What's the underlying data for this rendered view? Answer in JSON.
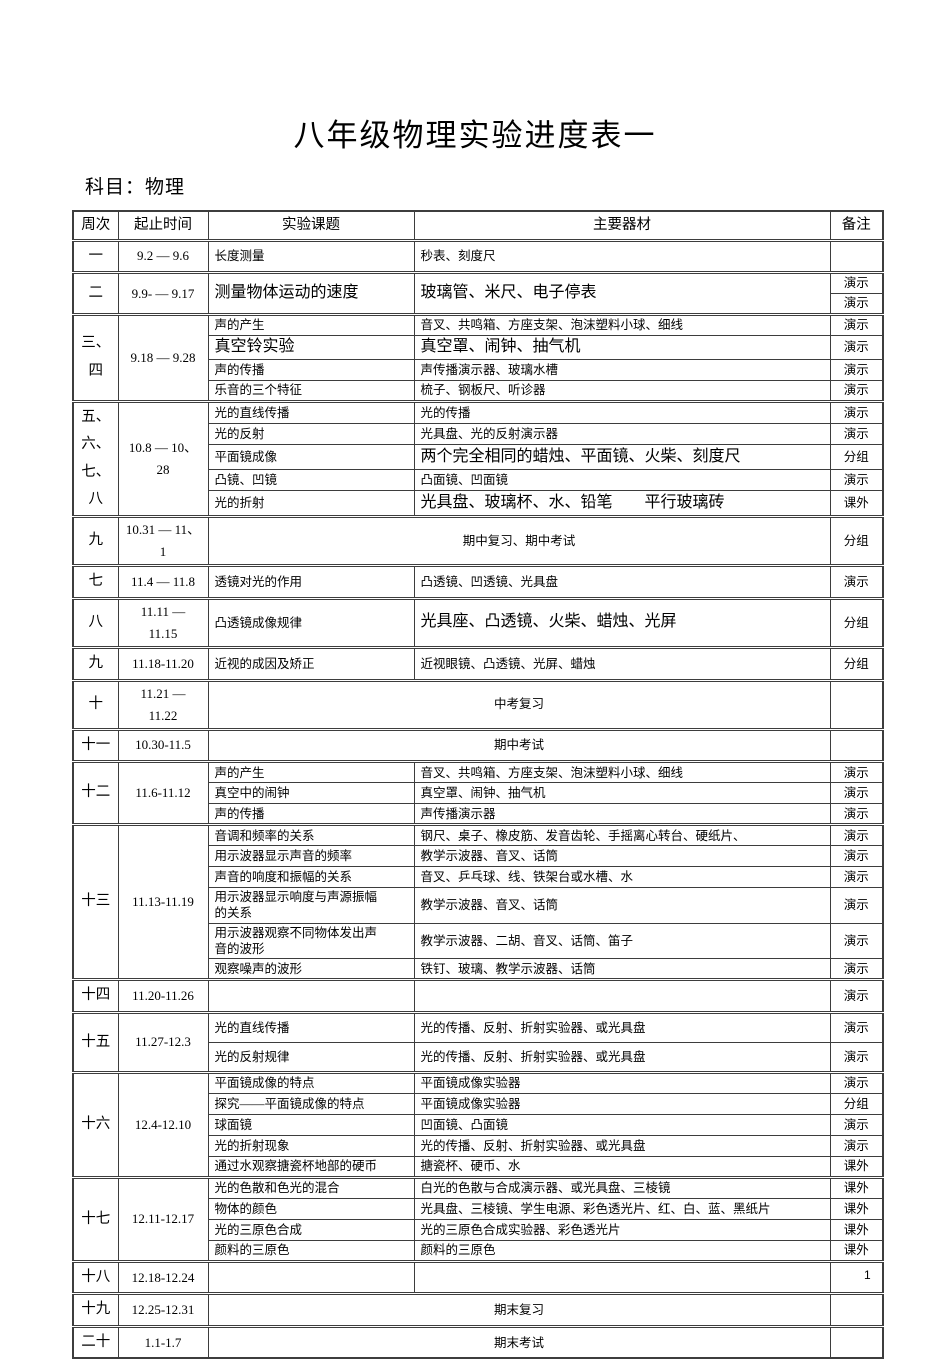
{
  "page": {
    "title": "八年级物理实验进度表一",
    "subject_label": "科目：物理",
    "page_number": "1"
  },
  "table": {
    "headers": [
      "周次",
      "起止时间",
      "实验课题",
      "主要器材",
      "备注"
    ],
    "groups": [
      {
        "week": [
          "一"
        ],
        "time": [
          "9.2 — 9.6"
        ],
        "rows": [
          {
            "topic": "长度测量",
            "equipment": "秒表、刻度尺",
            "note": ""
          }
        ]
      },
      {
        "week": [
          "二"
        ],
        "time": [
          "9.9- — 9.17"
        ],
        "merged": {
          "topic": "测量物体运动的速度",
          "equipment": "玻璃管、米尺、电子停表",
          "big": true
        },
        "rows": [
          {
            "note": "演示"
          },
          {
            "note": "演示"
          }
        ]
      },
      {
        "week": [
          "三、",
          "四"
        ],
        "time": [
          "9.18 — 9.28"
        ],
        "rows": [
          {
            "topic": "声的产生",
            "equipment": "音叉、共鸣箱、方座支架、泡沫塑料小球、细线",
            "note": "演示"
          },
          {
            "topic": "真空铃实验",
            "equipment": "真空罩、闹钟、抽气机",
            "note": "演示",
            "big": "row"
          },
          {
            "topic": "声的传播",
            "equipment": "声传播演示器、玻璃水槽",
            "note": "演示"
          },
          {
            "topic": "乐音的三个特征",
            "equipment": "梳子、钢板尺、听诊器",
            "note": "演示"
          }
        ]
      },
      {
        "week": [
          "五、",
          "六、",
          "七、",
          "八"
        ],
        "time": [
          "10.8 — 10、28"
        ],
        "rows": [
          {
            "topic": "光的直线传播",
            "equipment": "光的传播",
            "note": "演示"
          },
          {
            "topic": "光的反射",
            "equipment": "光具盘、光的反射演示器",
            "note": "演示"
          },
          {
            "topic": "平面镜成像",
            "equipment": "两个完全相同的蜡烛、平面镜、火柴、刻度尺",
            "note": "分组",
            "big": "equip"
          },
          {
            "topic": "凸镜、凹镜",
            "equipment": "凸面镜、凹面镜",
            "note": "演示"
          },
          {
            "topic": "光的折射",
            "equipment": "光具盘、玻璃杯、水、铅笔　　平行玻璃砖",
            "note": "课外",
            "big": "equip"
          }
        ]
      },
      {
        "week": [
          "九"
        ],
        "time": [
          "10.31 — 11、1"
        ],
        "rows": [
          {
            "span": "期中复习、期中考试",
            "note": "分组"
          }
        ]
      },
      {
        "week": [
          "七"
        ],
        "time": [
          "11.4 — 11.8"
        ],
        "rows": [
          {
            "topic": "透镜对光的作用",
            "equipment": "凸透镜、凹透镜、光具盘",
            "note": "演示"
          }
        ]
      },
      {
        "week": [
          "八"
        ],
        "time": [
          "11.11 —",
          "11.15"
        ],
        "rows": [
          {
            "topic": "凸透镜成像规律",
            "equipment": "光具座、凸透镜、火柴、蜡烛、光屏",
            "note": "分组",
            "big": "equip"
          }
        ]
      },
      {
        "week": [
          "九"
        ],
        "time": [
          "11.18-11.20"
        ],
        "rows": [
          {
            "topic": "近视的成因及矫正",
            "equipment": "近视眼镜、凸透镜、光屏、蜡烛",
            "note": "分组"
          }
        ]
      },
      {
        "week": [
          "十"
        ],
        "time": [
          "11.21 —",
          "11.22"
        ],
        "rows": [
          {
            "span": "中考复习",
            "note": ""
          }
        ]
      },
      {
        "week": [
          "十一"
        ],
        "time": [
          "10.30-11.5"
        ],
        "rows": [
          {
            "span": "期中考试",
            "note": ""
          }
        ]
      },
      {
        "week": [
          "十二"
        ],
        "time": [
          "11.6-11.12"
        ],
        "rows": [
          {
            "topic": "声的产生",
            "equipment": "音叉、共鸣箱、方座支架、泡沫塑料小球、细线",
            "note": "演示"
          },
          {
            "topic": "真空中的闹钟",
            "equipment": "真空罩、闹钟、抽气机",
            "note": "演示"
          },
          {
            "topic": "声的传播",
            "equipment": "声传播演示器",
            "note": "演示"
          }
        ]
      },
      {
        "week": [
          "十三"
        ],
        "time": [
          "11.13-11.19"
        ],
        "rows": [
          {
            "topic": "音调和频率的关系",
            "equipment": "钢尺、桌子、橡皮筋、发音齿轮、手摇离心转台、硬纸片、",
            "note": "演示"
          },
          {
            "topic": "用示波器显示声音的频率",
            "equipment": "教学示波器、音叉、话筒",
            "note": "演示"
          },
          {
            "topic": "声音的响度和振幅的关系",
            "equipment": "音叉、乒乓球、线、铁架台或水槽、水",
            "note": "演示"
          },
          {
            "topic": "用示波器显示响度与声源振幅\n的关系",
            "equipment": "教学示波器、音叉、话筒",
            "note": "演示"
          },
          {
            "topic": "用示波器观察不同物体发出声\n音的波形",
            "equipment": "教学示波器、二胡、音叉、话筒、笛子",
            "note": "演示"
          },
          {
            "topic": "观察噪声的波形",
            "equipment": "铁钉、玻璃、教学示波器、话筒",
            "note": "演示"
          }
        ]
      },
      {
        "week": [
          "十四"
        ],
        "time": [
          "11.20-11.26"
        ],
        "rows": [
          {
            "topic": "",
            "equipment": "",
            "note": "演示"
          }
        ]
      },
      {
        "week": [
          "十五"
        ],
        "time": [
          "11.27-12.3"
        ],
        "rows": [
          {
            "topic": "光的直线传播",
            "equipment": "光的传播、反射、折射实验器、或光具盘",
            "note": "演示",
            "tall": true
          },
          {
            "topic": "光的反射规律",
            "equipment": "光的传播、反射、折射实验器、或光具盘",
            "note": "演示",
            "tall": true
          }
        ]
      },
      {
        "week": [
          "十六"
        ],
        "time": [
          "12.4-12.10"
        ],
        "rows": [
          {
            "topic": "平面镜成像的特点",
            "equipment": "平面镜成像实验器",
            "note": "演示"
          },
          {
            "topic": "探究——平面镜成像的特点",
            "equipment": "平面镜成像实验器",
            "note": "分组"
          },
          {
            "topic": "球面镜",
            "equipment": "凹面镜、凸面镜",
            "note": "演示"
          },
          {
            "topic": "光的折射现象",
            "equipment": "光的传播、反射、折射实验器、或光具盘",
            "note": "演示"
          },
          {
            "topic": "通过水观察搪瓷杯地部的硬币",
            "equipment": "搪瓷杯、硬币、水",
            "note": "课外"
          }
        ]
      },
      {
        "week": [
          "十七"
        ],
        "time": [
          "12.11-12.17"
        ],
        "rows": [
          {
            "topic": "光的色散和色光的混合",
            "equipment": "白光的色散与合成演示器、或光具盘、三棱镜",
            "note": "课外"
          },
          {
            "topic": "物体的颜色",
            "equipment": "光具盘、三棱镜、学生电源、彩色透光片、红、白、蓝、黑纸片",
            "note": "课外"
          },
          {
            "topic": "光的三原色合成",
            "equipment": "光的三原色合成实验器、彩色透光片",
            "note": "课外"
          },
          {
            "topic": "颜料的三原色",
            "equipment": "颜料的三原色",
            "note": "课外"
          }
        ]
      },
      {
        "week": [
          "十八"
        ],
        "time": [
          "12.18-12.24"
        ],
        "rows": [
          {
            "topic": "",
            "equipment": "",
            "note": ""
          }
        ]
      },
      {
        "week": [
          "十九"
        ],
        "time": [
          "12.25-12.31"
        ],
        "rows": [
          {
            "span": "期末复习",
            "note": ""
          }
        ]
      },
      {
        "week": [
          "二十"
        ],
        "time": [
          "1.1-1.7"
        ],
        "rows": [
          {
            "span": "期末考试",
            "note": ""
          }
        ]
      }
    ]
  }
}
